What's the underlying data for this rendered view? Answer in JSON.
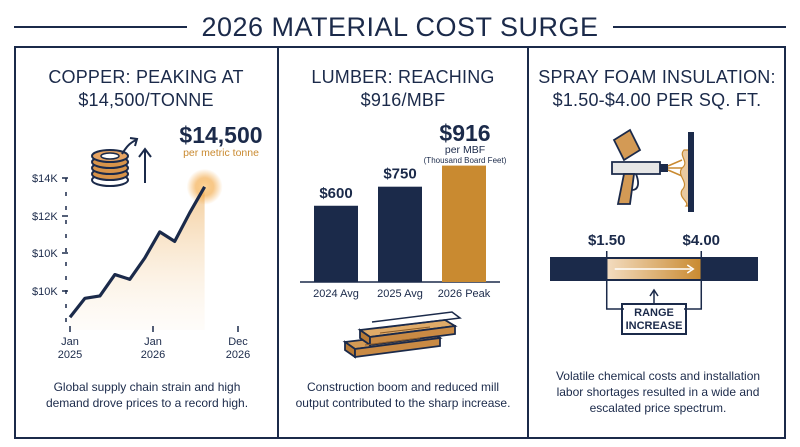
{
  "page": {
    "title": "2026 MATERIAL COST SURGE"
  },
  "colors": {
    "navy": "#1b2a4a",
    "copper": "#c98a30",
    "accent_glow": "#f2a33a",
    "cream": "#f7ecdc"
  },
  "panels": {
    "copper": {
      "heading_line1": "COPPER: PEAKING AT",
      "heading_line2": "$14,500/TONNE",
      "callout_value": "$14,500",
      "callout_unit": "per metric tonne",
      "footer": "Global supply chain strain and high demand drove prices to a record high.",
      "icon": "copper-coil-icon"
    },
    "lumber": {
      "heading_line1": "LUMBER: REACHING",
      "heading_line2": "$916/MBF",
      "callout_value": "$916",
      "callout_unit": "per MBF",
      "callout_note": "(Thousand Board Feet)",
      "footer": "Construction boom and reduced mill output contributed to the sharp increase.",
      "icon": "lumber-planks-icon"
    },
    "spray_foam": {
      "heading_line1": "SPRAY FOAM INSULATION:",
      "heading_line2": "$1.50-$4.00 PER SQ. FT.",
      "range_low_label": "$1.50",
      "range_high_label": "$4.00",
      "range_low": 1.5,
      "range_high": 4.0,
      "range_box": "RANGE INCREASE",
      "footer": "Volatile chemical costs and installation labor shortages resulted in a wide and escalated price spectrum.",
      "icon": "spray-gun-icon"
    }
  },
  "chart_data": [
    {
      "type": "line",
      "title": "COPPER: PEAKING AT $14,500/TONNE",
      "xlabel": "",
      "ylabel": "",
      "x_ticks": [
        "Jan 2025",
        "Jan 2026",
        "Dec 2026"
      ],
      "y_ticks": [
        "$14K",
        "$12K",
        "$10K",
        "$10K"
      ],
      "series": [
        {
          "x": [
            0,
            2,
            4,
            6,
            8,
            10,
            12,
            14,
            16,
            18,
            20,
            21,
            22,
            23
          ],
          "y": [
            9000,
            9800,
            9900,
            10800,
            10600,
            11500,
            12600,
            12200,
            13400,
            14500,
            13000,
            13000,
            13000,
            13000
          ]
        }
      ],
      "peak_value": 14500,
      "ylim": [
        8800,
        15000
      ],
      "xlim": [
        0,
        23
      ]
    },
    {
      "type": "bar",
      "title": "LUMBER: REACHING $916/MBF",
      "categories": [
        "2024 Avg",
        "2025 Avg",
        "2026 Peak"
      ],
      "values": [
        600,
        750,
        916
      ],
      "labels": [
        "$600",
        "$750",
        "$916"
      ],
      "ylim": [
        0,
        960
      ],
      "highlight_index": 2
    }
  ]
}
